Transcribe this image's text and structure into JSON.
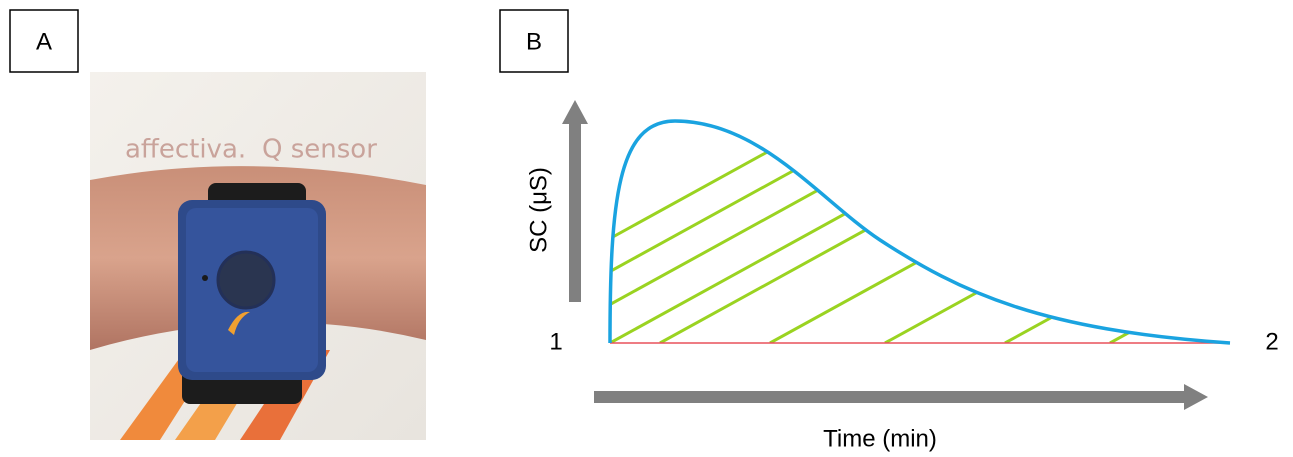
{
  "panel_a": {
    "label": "A",
    "brand": "affectiva.",
    "product": "Q sensor"
  },
  "panel_b": {
    "label": "B",
    "y_axis_label": "SC (μS)",
    "x_axis_label": "Time (min)",
    "start_label": "1",
    "end_label": "2"
  }
}
